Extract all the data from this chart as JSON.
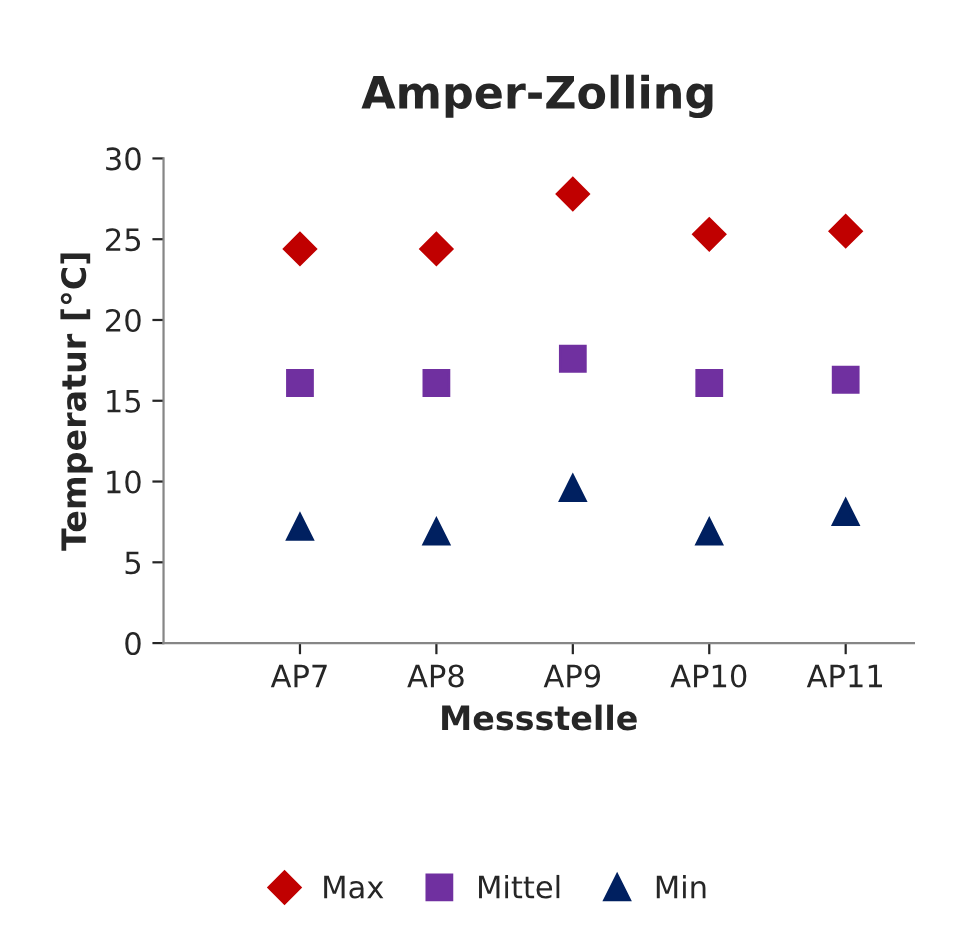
{
  "chart_data": {
    "type": "scatter",
    "title": "Amper-Zolling",
    "xlabel": "Messstelle",
    "ylabel": "Temperatur [°C]",
    "categories": [
      "AP7",
      "AP8",
      "AP9",
      "AP10",
      "AP11"
    ],
    "series": [
      {
        "name": "Max",
        "color": "#c00000",
        "marker": "diamond",
        "values": [
          24.4,
          24.4,
          27.8,
          25.3,
          25.5
        ]
      },
      {
        "name": "Mittel",
        "color": "#7030a0",
        "marker": "square",
        "values": [
          16.1,
          16.1,
          17.6,
          16.1,
          16.3
        ]
      },
      {
        "name": "Min",
        "color": "#002060",
        "marker": "triangle",
        "values": [
          7.2,
          6.9,
          9.6,
          6.9,
          8.1
        ]
      }
    ],
    "ylim": [
      0,
      30
    ],
    "yticks": [
      0,
      5,
      10,
      15,
      20,
      25,
      30
    ],
    "grid": false,
    "legend": "bottom"
  }
}
